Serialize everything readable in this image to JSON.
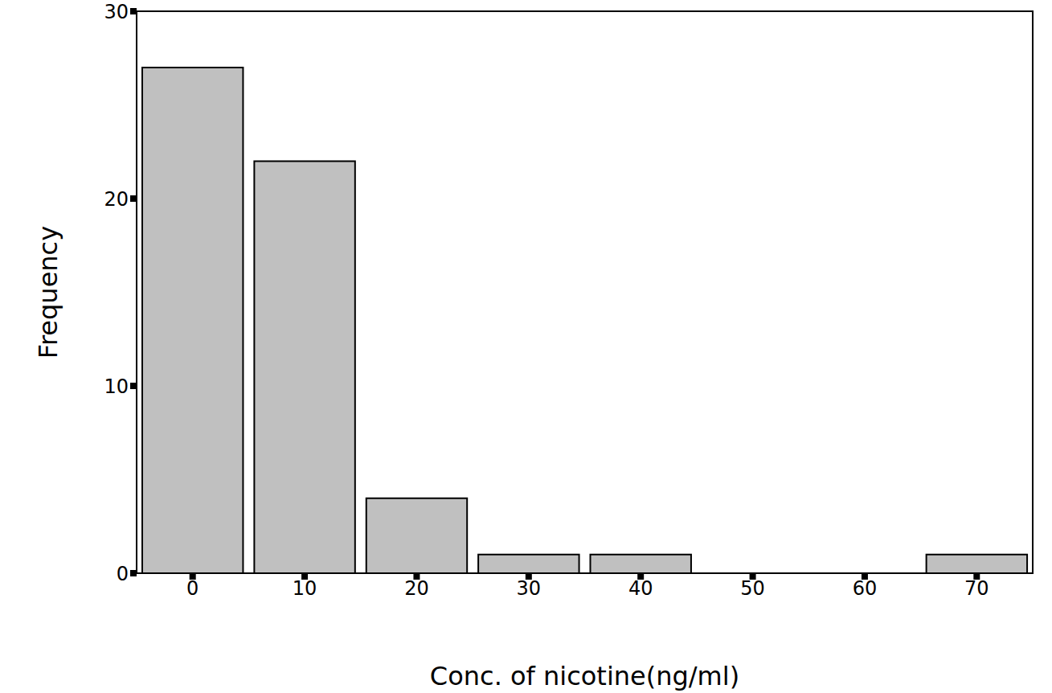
{
  "chart_data": {
    "type": "histogram",
    "x_label": "Conc. of nicotine(ng/ml)",
    "y_label": "Frequency",
    "bins": [
      -5,
      5,
      15,
      25,
      35,
      45,
      55,
      65,
      75
    ],
    "values": [
      27,
      22,
      4,
      1,
      1,
      0,
      0,
      1
    ],
    "color": "#c0c0c0",
    "xlim": [
      -5,
      75
    ],
    "ylim": [
      0,
      30
    ],
    "xticks": [
      0,
      10,
      20,
      30,
      40,
      50,
      60,
      70
    ],
    "yticks": [
      0,
      10,
      20,
      30
    ],
    "grid": false
  }
}
